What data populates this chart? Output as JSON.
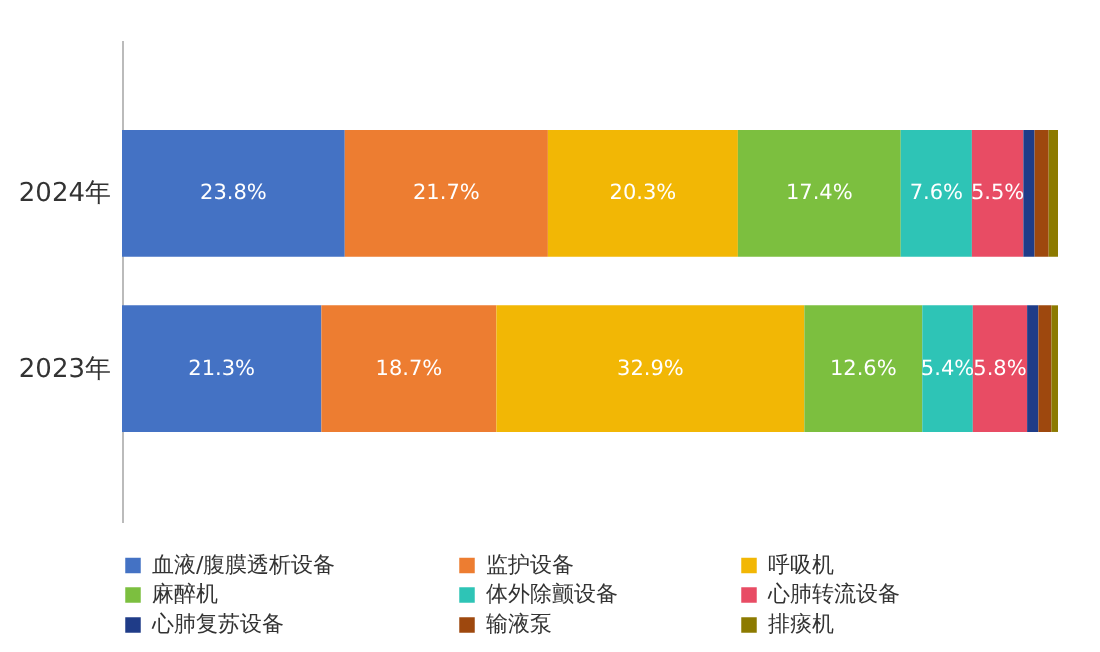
{
  "chart_data": {
    "type": "bar",
    "orientation": "horizontal",
    "stacked": true,
    "categories": [
      "2024年",
      "2023年"
    ],
    "xlim": [
      0,
      100
    ],
    "tick_labels": "y",
    "grid": false,
    "legend": "bottom",
    "series": [
      {
        "name": "血液/腹膜透析设备",
        "color": "#4472c4",
        "values": [
          23.8,
          21.3
        ],
        "value_labels": [
          "23.8%",
          "21.3%"
        ]
      },
      {
        "name": "监护设备",
        "color": "#ed7d31",
        "values": [
          21.7,
          18.7
        ],
        "value_labels": [
          "21.7%",
          "18.7%"
        ]
      },
      {
        "name": "呼吸机",
        "color": "#f2b705",
        "values": [
          20.3,
          32.9
        ],
        "value_labels": [
          "20.3%",
          "32.9%"
        ]
      },
      {
        "name": "麻醉机",
        "color": "#7cbf3f",
        "values": [
          17.4,
          12.6
        ],
        "value_labels": [
          "17.4%",
          "12.6%"
        ]
      },
      {
        "name": "体外除颤设备",
        "color": "#2ec4b6",
        "values": [
          7.6,
          5.4
        ],
        "value_labels": [
          "7.6%",
          "5.4%"
        ]
      },
      {
        "name": "心肺转流设备",
        "color": "#e84c64",
        "values": [
          5.5,
          5.8
        ],
        "value_labels": [
          "5.5%",
          "5.8%"
        ]
      },
      {
        "name": "心肺复苏设备",
        "color": "#1f3c88",
        "values": [
          1.2,
          1.2
        ],
        "value_labels": [
          null,
          null
        ]
      },
      {
        "name": "输液泵",
        "color": "#9e480e",
        "values": [
          1.5,
          1.4
        ],
        "value_labels": [
          null,
          null
        ]
      },
      {
        "name": "排痰机",
        "color": "#8c7a00",
        "values": [
          1.0,
          0.7
        ],
        "value_labels": [
          null,
          null
        ]
      }
    ]
  }
}
